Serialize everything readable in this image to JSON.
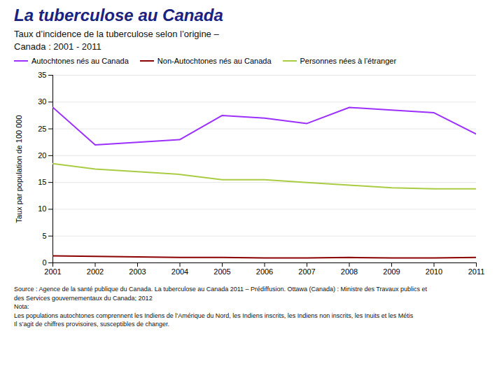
{
  "chart_data": {
    "type": "line",
    "title": "La tuberculose au Canada",
    "subtitle": "Taux d’incidence de la tuberculose selon l’origine –\nCanada : 2001 - 2011",
    "ylabel": "Taux par population de 100 000",
    "x": [
      2001,
      2002,
      2003,
      2004,
      2005,
      2006,
      2007,
      2008,
      2009,
      2010,
      2011
    ],
    "series": [
      {
        "name": "Autochtones nés au Canada",
        "color": "#9B30FF",
        "values": [
          29.0,
          22.0,
          22.5,
          23.0,
          27.5,
          27.0,
          26.0,
          29.0,
          28.5,
          28.0,
          24.0
        ]
      },
      {
        "name": "Non-Autochtones nés au Canada",
        "color": "#8B0000",
        "values": [
          1.3,
          1.2,
          1.1,
          1.0,
          1.0,
          0.9,
          0.9,
          1.0,
          0.9,
          0.9,
          1.0
        ]
      },
      {
        "name": "Personnes nées à l’étranger",
        "color": "#AACC44",
        "values": [
          18.5,
          17.5,
          17.0,
          16.5,
          15.5,
          15.5,
          15.0,
          14.5,
          14.0,
          13.8,
          13.8
        ]
      }
    ],
    "xlim": [
      2001,
      2011
    ],
    "xticks": [
      2001,
      2002,
      2003,
      2004,
      2005,
      2006,
      2007,
      2008,
      2009,
      2010,
      2011
    ],
    "ylim": [
      0,
      35
    ],
    "yticks": [
      0,
      5,
      10,
      15,
      20,
      25,
      30,
      35
    ],
    "grid": true,
    "legend": "upper left",
    "annotations": [
      "Source : Agence de la santé publique du Canada. La tuberculose au Canada 2011 – Prédiffusion. Ottawa (Canada) : Ministre des Travaux publics et",
      "des Services gouvernementaux du Canada; 2012",
      "Nota:",
      "Les populations autochtones comprennent les Indiens de l’Amérique du Nord, les Indiens inscrits, les Indiens non inscrits, les Inuits et les Métis",
      "Il s’agit de chiffres provisoires, susceptibles de changer."
    ]
  }
}
